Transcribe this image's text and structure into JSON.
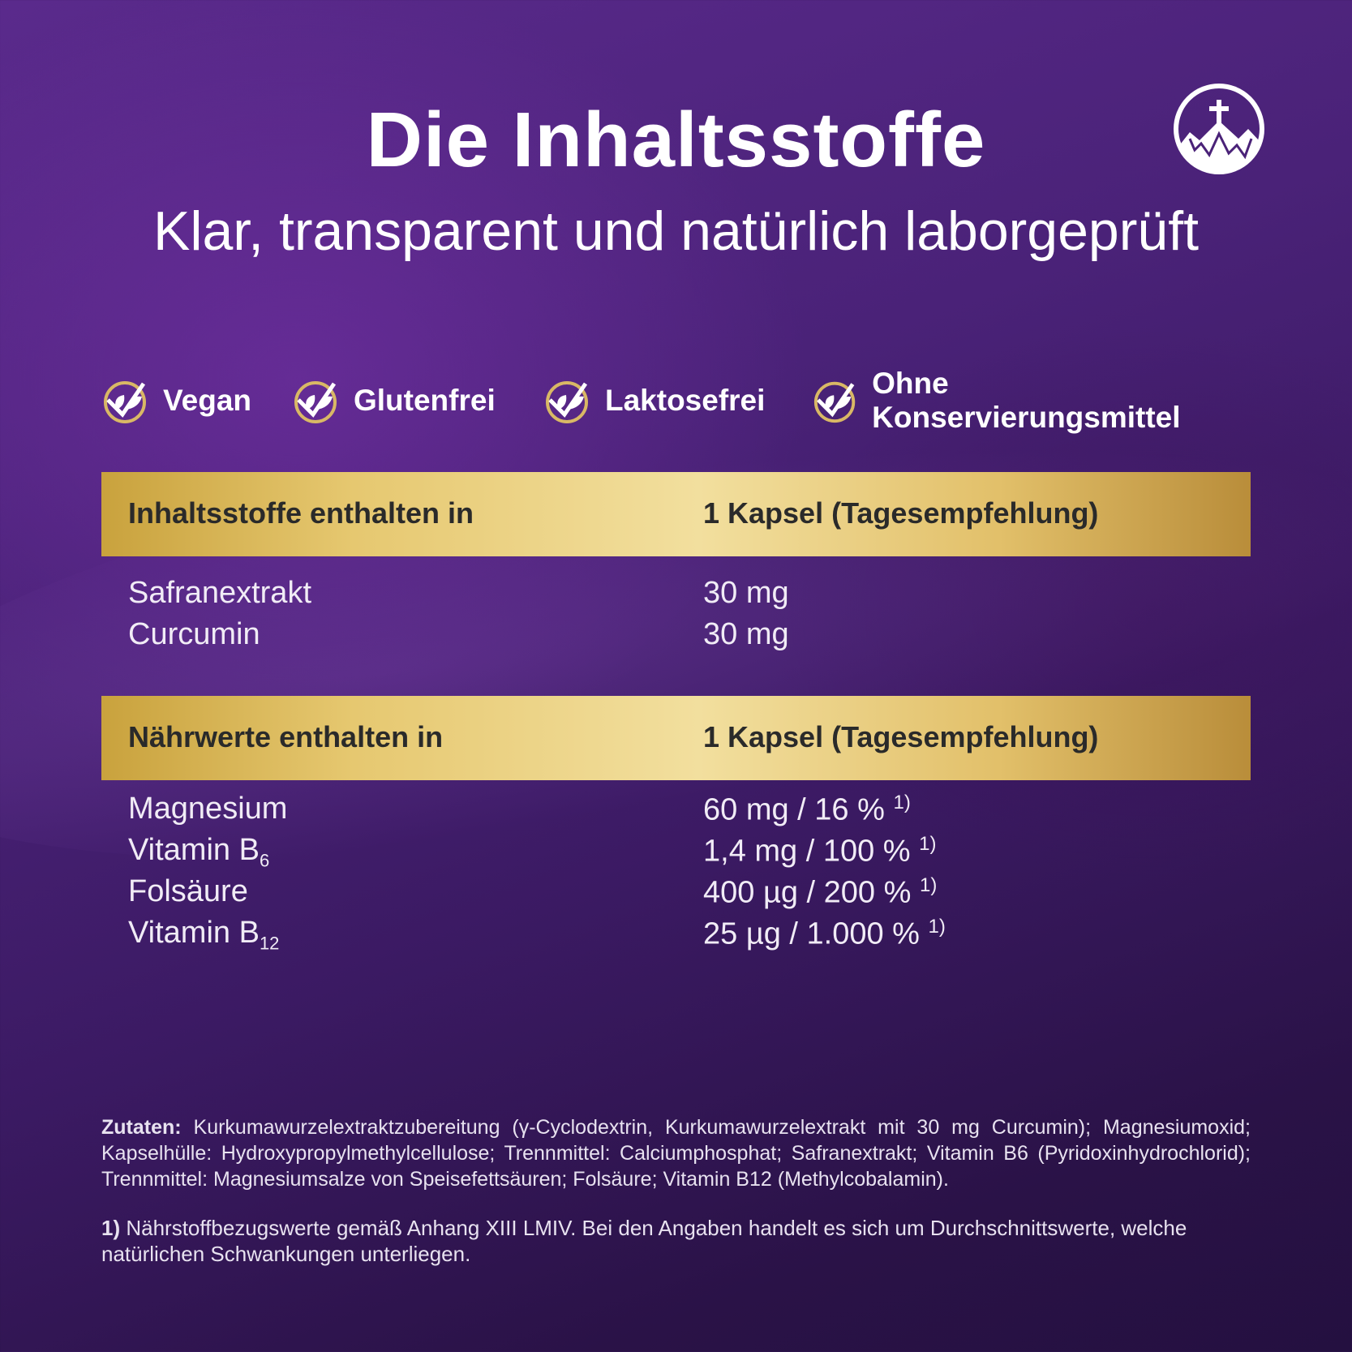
{
  "header": {
    "title": "Die Inhaltsstoffe",
    "subtitle": "Klar, transparent und natürlich laborgeprüft",
    "logo_icon": "cross-mountain-icon"
  },
  "badges": [
    {
      "icon": "leaf-check-icon",
      "label": "Vegan"
    },
    {
      "icon": "leaf-check-icon",
      "label": "Glutenfrei"
    },
    {
      "icon": "leaf-check-icon",
      "label": "Laktosefrei"
    },
    {
      "icon": "leaf-check-icon",
      "label": "Ohne Konservierungsmittel"
    }
  ],
  "table1": {
    "header_left": "Inhaltsstoffe enthalten in",
    "header_right": "1 Kapsel (Tagesempfehlung)",
    "rows": [
      {
        "name": "Safranextrakt",
        "value": "30 mg"
      },
      {
        "name": "Curcumin",
        "value": "30 mg"
      }
    ]
  },
  "table2": {
    "header_left": "Nährwerte enthalten in",
    "header_right": "1 Kapsel (Tagesempfehlung)",
    "rows": [
      {
        "name": "Magnesium",
        "sub": "",
        "value": "60 mg / 16 %",
        "note": "1)"
      },
      {
        "name": "Vitamin B",
        "sub": "6",
        "value": "1,4 mg / 100 %",
        "note": "1)"
      },
      {
        "name": "Folsäure",
        "sub": "",
        "value": "400 µg / 200 %",
        "note": "1)"
      },
      {
        "name": "Vitamin B",
        "sub": "12",
        "value": "25 µg / 1.000 %",
        "note": "1)"
      }
    ]
  },
  "footer": {
    "zutaten_label": "Zutaten:",
    "zutaten_text": " Kurkumawurzelextraktzubereitung (γ-Cyclodextrin, Kurkumawurzelextrakt mit 30 mg Curcumin); Magnesiumoxid; Kapselhülle: Hydroxypropylmethylcellulose; Trennmittel: Calciumphosphat; Safranextrakt; Vitamin B6 (Pyridoxinhydrochlorid); Trennmittel: Magnesiumsalze von Speisefettsäuren; Folsäure; Vitamin B12 (Methylcobalamin).",
    "note_label": "1)",
    "note_text": " Nährstoffbezugswerte gemäß Anhang XIII LMIV. Bei den Angaben handelt es sich um Durchschnittswerte, welche natürlichen Schwankungen unterliegen."
  },
  "colors": {
    "background": "#4a2278",
    "gold": "#e6c870",
    "gold_dark": "#b98d3a"
  }
}
